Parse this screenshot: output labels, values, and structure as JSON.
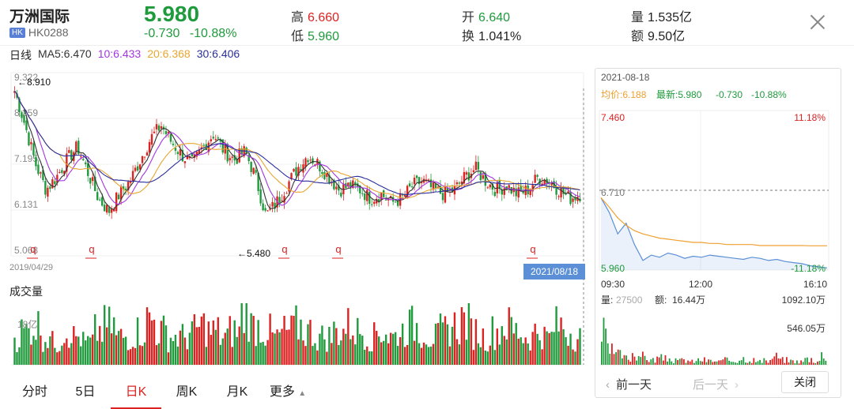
{
  "stock": {
    "name": "万洲国际",
    "market_badge": "HK",
    "code": "HK0288",
    "price": "5.980",
    "change": "-0.730",
    "change_pct": "-10.88%"
  },
  "stats": {
    "high_label": "高",
    "high": "6.660",
    "low_label": "低",
    "low": "5.960",
    "open_label": "开",
    "open": "6.640",
    "turnover_label": "换",
    "turnover": "1.041%",
    "volume_label": "量",
    "volume": "1.535亿",
    "amount_label": "额",
    "amount": "9.50亿"
  },
  "ma_legend": {
    "title": "日线",
    "ma5": "MA5:6.470",
    "ma10": "10:6.433",
    "ma20": "20:6.368",
    "ma30": "30:6.406"
  },
  "colors": {
    "up": "#dd2222",
    "down": "#1f9a3c",
    "ma5": "#333333",
    "ma10": "#a236e0",
    "ma20": "#e8a630",
    "ma30": "#2b2f9c",
    "intraday_price": "#5b8fd6",
    "intraday_avg": "#f0a030",
    "date_badge": "#5b8fd6"
  },
  "chart_data": [
    {
      "type": "candlestick",
      "title": "",
      "y_ticks": [
        "9.322",
        "8.259",
        "7.195",
        "6.131",
        "5.068"
      ],
      "ylim": [
        5.068,
        9.322
      ],
      "x_start": "2019/04/29",
      "x_end": "2021/08/18",
      "annotations": {
        "max_label": "←8.910",
        "min_label": "←5.480",
        "marker_symbol": "q"
      },
      "ma_lines": [
        "MA5",
        "MA10",
        "MA20",
        "MA30"
      ],
      "approx_close_path": [
        8.9,
        8.1,
        7.2,
        6.6,
        6.9,
        7.3,
        7.6,
        7.0,
        6.4,
        6.1,
        6.5,
        6.8,
        7.3,
        7.8,
        8.1,
        7.7,
        7.4,
        7.2,
        7.6,
        7.9,
        7.5,
        7.3,
        7.5,
        6.9,
        6.0,
        6.3,
        6.7,
        7.1,
        7.4,
        7.2,
        6.9,
        6.6,
        6.7,
        6.6,
        6.4,
        6.5,
        6.3,
        6.4,
        6.7,
        6.8,
        6.6,
        6.5,
        6.6,
        6.9,
        7.1,
        6.8,
        6.6,
        6.7,
        6.5,
        6.6,
        6.9,
        6.8,
        6.6,
        6.4,
        6.5
      ]
    },
    {
      "type": "bar",
      "title": "成交量",
      "y_tick": "18亿",
      "approx_values": [
        5,
        6,
        7,
        5,
        4,
        6,
        5,
        4,
        6,
        7,
        5,
        5,
        6,
        8,
        6,
        5,
        5,
        6,
        7,
        6,
        5,
        6,
        9,
        7,
        6,
        5,
        6,
        7,
        6,
        5,
        5,
        6,
        7,
        6,
        5,
        6,
        5,
        6,
        7,
        6,
        5,
        6,
        7,
        8,
        6,
        5,
        6,
        7,
        6,
        5,
        6,
        5,
        7,
        6,
        5
      ]
    },
    {
      "type": "line",
      "title": "",
      "date": "2021-08-18",
      "avg_label": "均价:6.188",
      "latest_label": "最新:5.980",
      "change": "-0.730",
      "change_pct": "-10.88%",
      "y_top": "7.460",
      "y_top_pct": "11.18%",
      "y_mid": "6.710",
      "y_bottom": "5.960",
      "y_bottom_pct": "-11.18%",
      "x_ticks": [
        "09:30",
        "12:00",
        "16:10"
      ],
      "ylim": [
        5.96,
        7.46
      ],
      "price_series": [
        6.64,
        6.5,
        6.3,
        6.4,
        6.2,
        6.05,
        6.1,
        6.08,
        6.12,
        6.1,
        6.07,
        6.09,
        6.08,
        6.1,
        6.09,
        6.08,
        6.07,
        6.06,
        6.08,
        6.07,
        6.05,
        6.06,
        6.04,
        6.03,
        6.02,
        6.0,
        5.99,
        5.98
      ],
      "avg_series": [
        6.64,
        6.55,
        6.45,
        6.38,
        6.33,
        6.3,
        6.28,
        6.26,
        6.25,
        6.24,
        6.23,
        6.22,
        6.22,
        6.21,
        6.21,
        6.2,
        6.2,
        6.2,
        6.2,
        6.19,
        6.19,
        6.19,
        6.19,
        6.19,
        6.19,
        6.188,
        6.188,
        6.188
      ]
    }
  ],
  "intraday_volume": {
    "volume_label": "量:",
    "volume_value": "27500",
    "amount_label": "额:",
    "amount_value": "16.44万",
    "y_top": "1092.10万",
    "y_mid": "546.05万",
    "approx_values": [
      90,
      40,
      30,
      20,
      35,
      25,
      15,
      20,
      18,
      12,
      14,
      10,
      15,
      12,
      10,
      14,
      12,
      20,
      15,
      10,
      12,
      25,
      15,
      12,
      10,
      18,
      12,
      30
    ]
  },
  "date_badge": "2021/08/18",
  "tabs": [
    {
      "label": "分时"
    },
    {
      "label": "5日"
    },
    {
      "label": "日K"
    },
    {
      "label": "周K"
    },
    {
      "label": "月K"
    },
    {
      "label": "更多"
    }
  ],
  "nav": {
    "prev_day": "前一天",
    "next_day": "后一天",
    "close": "关闭"
  }
}
